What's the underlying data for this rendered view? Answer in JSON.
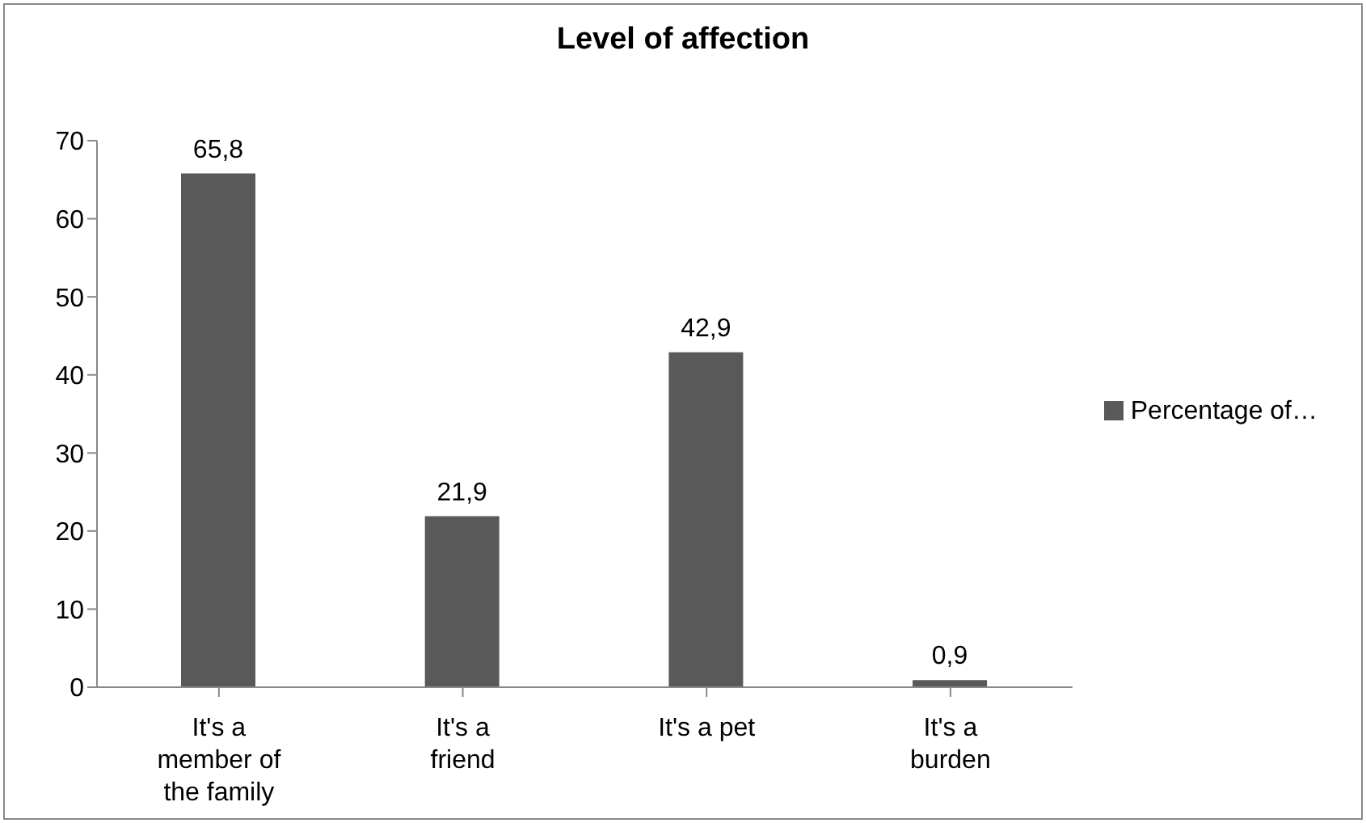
{
  "chart_data": {
    "type": "bar",
    "title": "Level of affection",
    "categories": [
      "It's a member of the family",
      "It's a friend",
      "It's a pet",
      "It's a burden"
    ],
    "series": [
      {
        "name": "Percentage of…",
        "color": "#595959",
        "values": [
          65.8,
          21.9,
          42.9,
          0.9
        ],
        "value_labels": [
          "65,8",
          "21,9",
          "42,9",
          "0,9"
        ]
      }
    ],
    "ylim": [
      0,
      70
    ],
    "yticks": [
      0,
      10,
      20,
      30,
      40,
      50,
      60,
      70
    ],
    "grid": false,
    "legend": "right"
  }
}
